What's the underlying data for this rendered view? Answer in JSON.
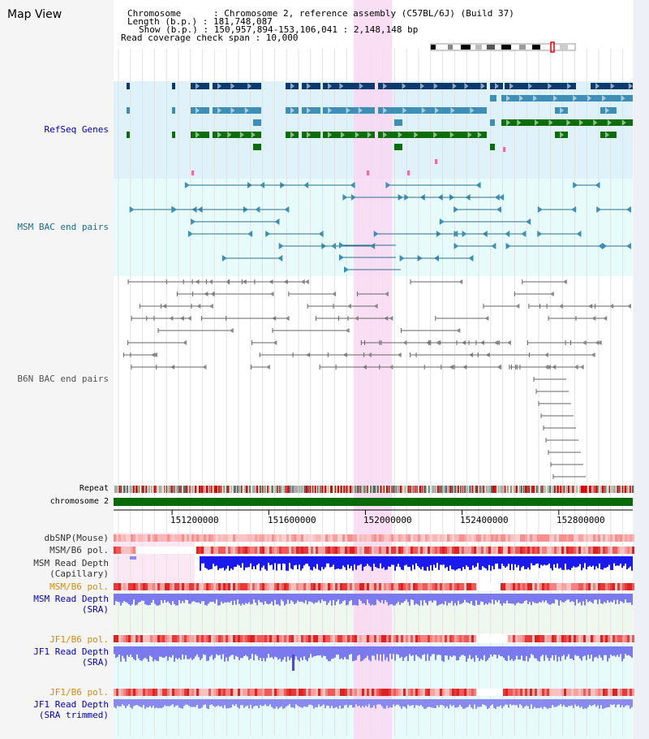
{
  "title": "Map View",
  "info": {
    "chromosome": "Chromosome      : Chromosome 2, reference assembly (C57BL/6J) (Build 37)",
    "length": "Length (b.p.) : 181,748,087",
    "show": "Show (b.p.) : 150,957,894-153,106,041 : 2,148,148 bp",
    "coverage": "Read coverage check span : 10,000"
  },
  "tracks": {
    "refseq": "RefSeq Genes",
    "msm_bac": "MSM BAC end pairs",
    "b6n_bac": "B6N BAC end pairs",
    "repeat": "Repeat",
    "chromosome": "chromosome 2",
    "dbsnp": "dbSNP(Mouse)",
    "msm_pol1": "MSM/B6 pol.",
    "msm_depth_cap_1": "MSM Read Depth",
    "msm_depth_cap_2": "(Capillary)",
    "msm_pol2": "MSM/B6 pol.",
    "msm_depth_sra_1": "MSM Read Depth",
    "msm_depth_sra_2": "(SRA)",
    "jf1_pol1": "JF1/B6 pol.",
    "jf1_depth_sra_1": "JF1 Read Depth",
    "jf1_depth_sra_2": "(SRA)",
    "jf1_pol2": "JF1/B6 pol.",
    "jf1_depth_trim_1": "JF1 Read Depth",
    "jf1_depth_trim_2": "(SRA trimmed)"
  },
  "ticks": [
    "151200000",
    "151600000",
    "152000000",
    "152400000",
    "152800000"
  ],
  "colors": {
    "refseq_bg": "#dff2fa",
    "bac_bg": "#e7fbfb",
    "highlight": "#f9d8f2",
    "gene_dark": "#0a3a6e",
    "gene_light": "#3d8fb5",
    "gene_green": "#0b6e0b",
    "chrom_bar": "#0a6a0a",
    "label_blue": "#0000cc",
    "label_orange": "#e08a00",
    "label_bac": "#1b6e8a"
  }
}
